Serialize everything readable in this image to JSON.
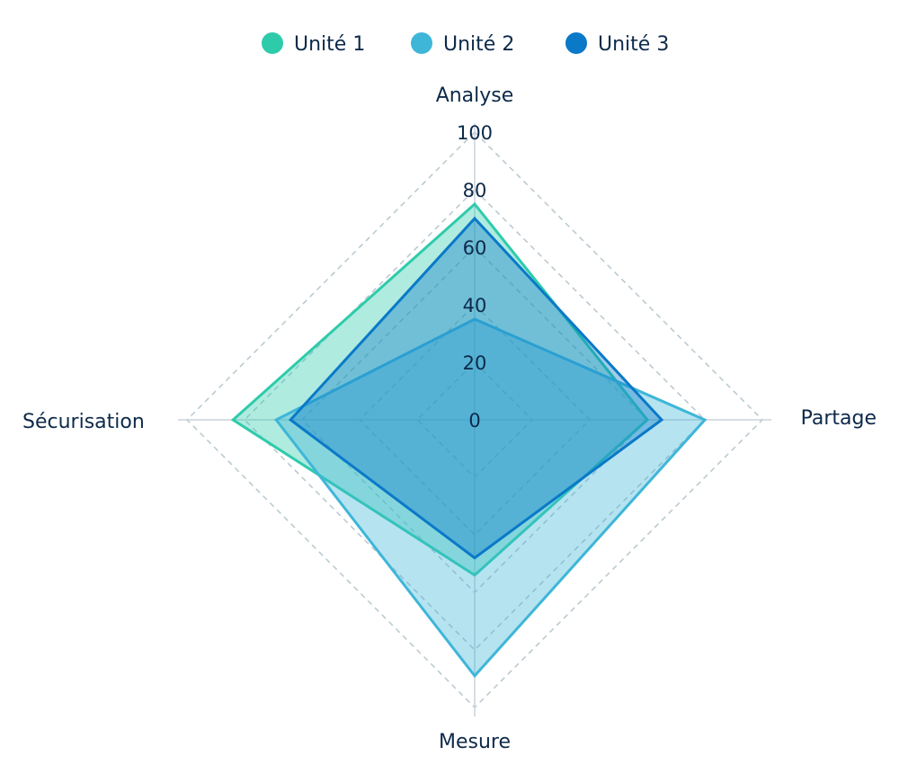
{
  "chart_data": {
    "type": "radar",
    "title": "",
    "axes": [
      "Analyse",
      "Partage",
      "Mesure",
      "Sécurisation"
    ],
    "rlim": [
      0,
      100
    ],
    "ticks": [
      "0",
      "20",
      "40",
      "60",
      "80",
      "100"
    ],
    "grid": true,
    "legend_position": "top",
    "series": [
      {
        "name": "Unité 1",
        "values": [
          75,
          60,
          54,
          84
        ],
        "color": "#2ecbab"
      },
      {
        "name": "Unité 2",
        "values": [
          35,
          80,
          89,
          69
        ],
        "color": "#3eb6d8"
      },
      {
        "name": "Unité 3",
        "values": [
          70,
          65,
          48,
          64
        ],
        "color": "#0a79c8"
      }
    ]
  }
}
